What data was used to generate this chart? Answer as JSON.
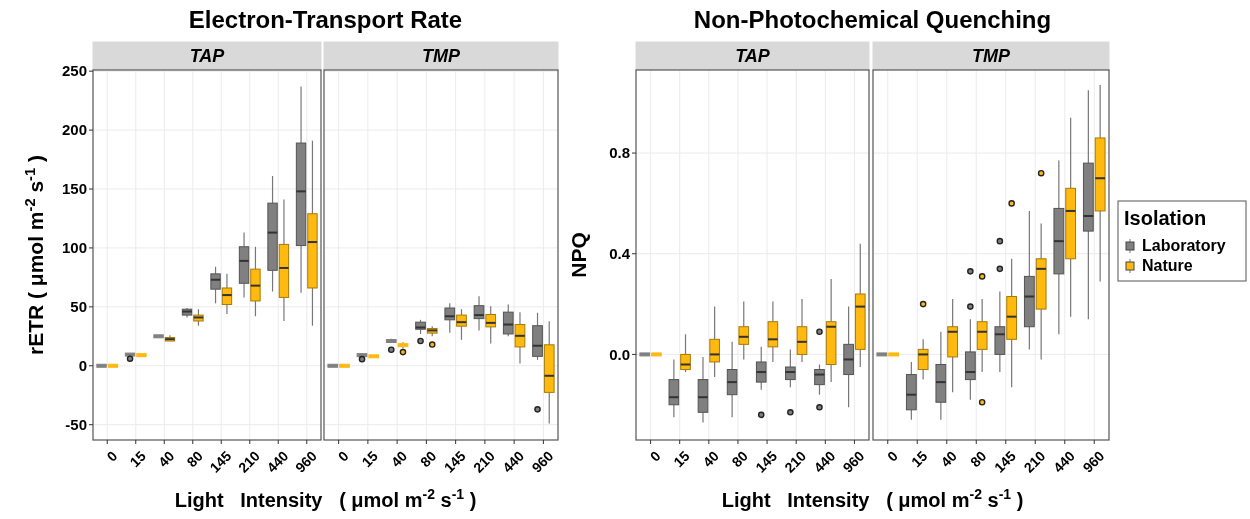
{
  "chart_data": [
    {
      "type": "box",
      "title": "Electron-Transport Rate",
      "subtitle": "TAP",
      "xlabel": "Light   Intensity   ( μmol m$^{-2}$ s$^{-1}$ )",
      "ylabel": "rETR  ( μmol m$^{-2}$ s$^{-1}$ )",
      "categories": [
        "0",
        "15",
        "40",
        "80",
        "145",
        "210",
        "440",
        "960"
      ],
      "ylim": [
        -63,
        251
      ],
      "yticks": [
        -50,
        0,
        50,
        100,
        150,
        200,
        250
      ],
      "grid": true,
      "series": [
        {
          "color": "#808080",
          "boxes": [
            {
              "low": 0,
              "q1": 0,
              "median": 0,
              "q3": 0,
              "high": 0
            },
            {
              "low": 9,
              "q1": 9,
              "median": 9.5,
              "q3": 10,
              "high": 10,
              "outliers": [
                6
              ]
            },
            {
              "low": 24,
              "q1": 24,
              "median": 25,
              "q3": 26,
              "high": 26
            },
            {
              "low": 41,
              "q1": 43,
              "median": 46,
              "q3": 48,
              "high": 49
            },
            {
              "low": 53,
              "q1": 65,
              "median": 73,
              "q3": 78,
              "high": 84
            },
            {
              "low": 58,
              "q1": 70,
              "median": 89,
              "q3": 101,
              "high": 113
            },
            {
              "low": 63,
              "q1": 81,
              "median": 113,
              "q3": 138,
              "high": 161
            },
            {
              "low": 62,
              "q1": 102,
              "median": 148,
              "q3": 189,
              "high": 237
            }
          ]
        },
        {
          "color": "#ffb90f",
          "boxes": [
            {
              "low": 0,
              "q1": 0,
              "median": 0,
              "q3": 0,
              "high": 0
            },
            {
              "low": 9,
              "q1": 9,
              "median": 9,
              "q3": 9,
              "high": 9
            },
            {
              "low": 21,
              "q1": 21,
              "median": 22.6,
              "q3": 24,
              "high": 26
            },
            {
              "low": 34,
              "q1": 38,
              "median": 41,
              "q3": 43,
              "high": 48
            },
            {
              "low": 44,
              "q1": 52,
              "median": 60,
              "q3": 66,
              "high": 78
            },
            {
              "low": 42,
              "q1": 55,
              "median": 68,
              "q3": 82,
              "high": 101
            },
            {
              "low": 38,
              "q1": 58,
              "median": 83,
              "q3": 103,
              "high": 141
            },
            {
              "low": 34,
              "q1": 66,
              "median": 105,
              "q3": 129,
              "high": 191
            }
          ]
        }
      ]
    },
    {
      "type": "box",
      "subtitle": "TMP",
      "categories": [
        "0",
        "15",
        "40",
        "80",
        "145",
        "210",
        "440",
        "960"
      ],
      "ylim": [
        -63,
        251
      ],
      "yticks": [
        -50,
        0,
        50,
        100,
        150,
        200,
        250
      ],
      "grid": true,
      "tick_labels": "x",
      "series": [
        {
          "color": "#808080",
          "boxes": [
            {
              "low": 0,
              "q1": 0,
              "median": 0,
              "q3": 0,
              "high": 0
            },
            {
              "low": 8.5,
              "q1": 8.5,
              "median": 9,
              "q3": 9.5,
              "high": 9.5,
              "outliers": [
                5.6
              ]
            },
            {
              "low": 20,
              "q1": 20,
              "median": 21,
              "q3": 22,
              "high": 23,
              "outliers": [
                13.6
              ]
            },
            {
              "low": 27,
              "q1": 31,
              "median": 32.5,
              "q3": 37,
              "high": 39,
              "outliers": [
                21
              ]
            },
            {
              "low": 28,
              "q1": 39,
              "median": 42,
              "q3": 49,
              "high": 53
            },
            {
              "low": 30,
              "q1": 40,
              "median": 43,
              "q3": 51,
              "high": 59
            },
            {
              "low": 25,
              "q1": 27,
              "median": 35,
              "q3": 45.5,
              "high": 52
            },
            {
              "low": 5,
              "q1": 8,
              "median": 17,
              "q3": 34,
              "high": 45,
              "outliers": [
                -37
              ]
            }
          ]
        },
        {
          "color": "#ffb90f",
          "boxes": [
            {
              "low": 0,
              "q1": 0,
              "median": 0,
              "q3": 0,
              "high": 0
            },
            {
              "low": 7.5,
              "q1": 7.5,
              "median": 8,
              "q3": 8.5,
              "high": 8.5
            },
            {
              "low": 14.7,
              "q1": 16.4,
              "median": 17.5,
              "q3": 18.6,
              "high": 20,
              "outliers": [
                11.6
              ]
            },
            {
              "low": 25,
              "q1": 27.7,
              "median": 30,
              "q3": 31.6,
              "high": 33.6,
              "outliers": [
                18
              ]
            },
            {
              "low": 22,
              "q1": 33.6,
              "median": 37,
              "q3": 43,
              "high": 48
            },
            {
              "low": 19,
              "q1": 33,
              "median": 36.4,
              "q3": 43.5,
              "high": 50.5
            },
            {
              "low": 2,
              "q1": 16,
              "median": 25.4,
              "q3": 35,
              "high": 45.5
            },
            {
              "low": -49,
              "q1": -22.6,
              "median": -8.5,
              "q3": 17.8,
              "high": 37.8
            }
          ]
        }
      ]
    },
    {
      "type": "box",
      "title": "Non-Photochemical Quenching",
      "subtitle": "TAP",
      "xlabel": "Light   Intensity   ( μmol m$^{-2}$ s$^{-1}$ )",
      "ylabel": "NPQ",
      "categories": [
        "0",
        "15",
        "40",
        "80",
        "145",
        "210",
        "440",
        "960"
      ],
      "ylim": [
        -0.34,
        1.13
      ],
      "yticks": [
        {
          "value": 0,
          "label": "0.0"
        },
        0.4,
        0.8
      ],
      "grid": true,
      "series": [
        {
          "color": "#808080",
          "boxes": [
            {
              "low": 0,
              "q1": 0,
              "median": 0,
              "q3": 0,
              "high": 0
            },
            {
              "low": -0.25,
              "q1": -0.2,
              "median": -0.17,
              "q3": -0.1,
              "high": -0.02
            },
            {
              "low": -0.27,
              "q1": -0.23,
              "median": -0.17,
              "q3": -0.1,
              "high": -0.01
            },
            {
              "low": -0.25,
              "q1": -0.16,
              "median": -0.11,
              "q3": -0.06,
              "high": 0.05
            },
            {
              "low": -0.14,
              "q1": -0.11,
              "median": -0.07,
              "q3": -0.03,
              "high": 0.03,
              "outliers": [
                -0.24
              ]
            },
            {
              "low": -0.13,
              "q1": -0.1,
              "median": -0.07,
              "q3": -0.05,
              "high": 0.02,
              "outliers": [
                -0.23
              ]
            },
            {
              "low": -0.16,
              "q1": -0.12,
              "median": -0.08,
              "q3": -0.06,
              "high": -0.04,
              "outliers": [
                0.09,
                -0.21
              ]
            },
            {
              "low": -0.21,
              "q1": -0.08,
              "median": -0.02,
              "q3": 0.04,
              "high": 0.19
            }
          ]
        },
        {
          "color": "#ffb90f",
          "boxes": [
            {
              "low": 0,
              "q1": 0,
              "median": 0,
              "q3": 0,
              "high": 0
            },
            {
              "low": -0.07,
              "q1": -0.06,
              "median": -0.04,
              "q3": 0,
              "high": 0.08
            },
            {
              "low": -0.09,
              "q1": -0.03,
              "median": 0,
              "q3": 0.06,
              "high": 0.19
            },
            {
              "low": -0.02,
              "q1": 0.04,
              "median": 0.07,
              "q3": 0.11,
              "high": 0.21
            },
            {
              "low": -0.03,
              "q1": 0.03,
              "median": 0.06,
              "q3": 0.13,
              "high": 0.21
            },
            {
              "low": -0.03,
              "q1": 0,
              "median": 0.05,
              "q3": 0.11,
              "high": 0.22
            },
            {
              "low": -0.11,
              "q1": -0.04,
              "median": 0.11,
              "q3": 0.13,
              "high": 0.3
            },
            {
              "low": -0.05,
              "q1": 0.02,
              "median": 0.19,
              "q3": 0.24,
              "high": 0.44
            }
          ]
        }
      ]
    },
    {
      "type": "box",
      "subtitle": "TMP",
      "categories": [
        "0",
        "15",
        "40",
        "80",
        "145",
        "210",
        "440",
        "960"
      ],
      "ylim": [
        -0.34,
        1.13
      ],
      "yticks": [
        0,
        0.4,
        0.8
      ],
      "grid": true,
      "tick_labels": "x",
      "legend": "right",
      "legend_title": "Isolation",
      "series": [
        {
          "name": "Laboratory",
          "color": "#808080",
          "boxes": [
            {
              "low": 0,
              "q1": 0,
              "median": 0,
              "q3": 0,
              "high": 0
            },
            {
              "low": -0.26,
              "q1": -0.22,
              "median": -0.16,
              "q3": -0.08,
              "high": -0.03
            },
            {
              "low": -0.26,
              "q1": -0.19,
              "median": -0.11,
              "q3": -0.04,
              "high": 0.09
            },
            {
              "low": -0.18,
              "q1": -0.1,
              "median": -0.07,
              "q3": 0.01,
              "high": 0.14,
              "outliers": [
                0.33,
                0.19
              ]
            },
            {
              "low": -0.07,
              "q1": 0,
              "median": 0.08,
              "q3": 0.11,
              "high": 0.25,
              "outliers": [
                0.45,
                0.34
              ]
            },
            {
              "low": 0.02,
              "q1": 0.11,
              "median": 0.23,
              "q3": 0.31,
              "high": 0.57
            },
            {
              "low": 0.08,
              "q1": 0.32,
              "median": 0.45,
              "q3": 0.58,
              "high": 0.77
            },
            {
              "low": 0.14,
              "q1": 0.49,
              "median": 0.55,
              "q3": 0.76,
              "high": 1.05
            }
          ]
        },
        {
          "name": "Nature",
          "color": "#ffb90f",
          "boxes": [
            {
              "low": 0,
              "q1": 0,
              "median": 0,
              "q3": 0,
              "high": 0
            },
            {
              "low": -0.1,
              "q1": -0.06,
              "median": 0,
              "q3": 0.02,
              "high": 0.06,
              "outliers": [
                0.2
              ]
            },
            {
              "low": -0.15,
              "q1": -0.01,
              "median": 0.09,
              "q3": 0.11,
              "high": 0.22
            },
            {
              "low": -0.07,
              "q1": 0.02,
              "median": 0.09,
              "q3": 0.13,
              "high": 0.22,
              "outliers": [
                0.31,
                -0.19
              ]
            },
            {
              "low": -0.13,
              "q1": 0.06,
              "median": 0.15,
              "q3": 0.23,
              "high": 0.38,
              "outliers": [
                0.6
              ]
            },
            {
              "low": -0.02,
              "q1": 0.18,
              "median": 0.34,
              "q3": 0.38,
              "high": 0.52,
              "outliers": [
                0.72
              ]
            },
            {
              "low": 0.15,
              "q1": 0.38,
              "median": 0.57,
              "q3": 0.66,
              "high": 0.94
            },
            {
              "low": 0.29,
              "q1": 0.57,
              "median": 0.7,
              "q3": 0.86,
              "high": 1.07
            }
          ]
        }
      ]
    }
  ]
}
